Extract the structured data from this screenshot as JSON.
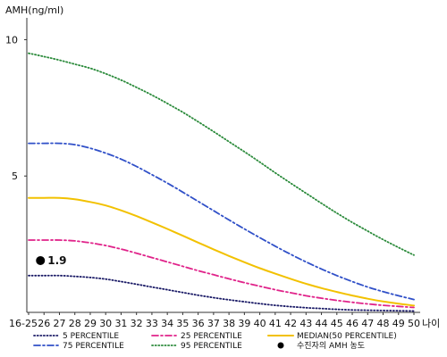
{
  "chart_data": {
    "type": "line",
    "ylabel": "AMH(ng/ml)",
    "xlabel": "나이",
    "categories": [
      "16-25",
      "26",
      "27",
      "28",
      "29",
      "30",
      "31",
      "32",
      "33",
      "34",
      "35",
      "36",
      "37",
      "38",
      "39",
      "40",
      "41",
      "42",
      "43",
      "44",
      "45",
      "46",
      "47",
      "48",
      "49",
      "50"
    ],
    "yticks": [
      5,
      10
    ],
    "ylim": [
      0,
      10.8
    ],
    "grid": false,
    "legend_position": "bottom",
    "series": [
      {
        "name": "5 PERCENTILE",
        "color": "#1a1a66",
        "style": "dotted",
        "values": [
          1.35,
          1.35,
          1.35,
          1.32,
          1.28,
          1.22,
          1.13,
          1.03,
          0.93,
          0.83,
          0.73,
          0.63,
          0.54,
          0.46,
          0.39,
          0.32,
          0.26,
          0.21,
          0.17,
          0.14,
          0.11,
          0.09,
          0.08,
          0.07,
          0.06,
          0.05
        ]
      },
      {
        "name": "25 PERCENTILE",
        "color": "#e0238a",
        "style": "dashdot",
        "values": [
          2.65,
          2.65,
          2.65,
          2.62,
          2.55,
          2.45,
          2.32,
          2.17,
          2.01,
          1.85,
          1.69,
          1.53,
          1.38,
          1.23,
          1.09,
          0.96,
          0.83,
          0.72,
          0.61,
          0.52,
          0.44,
          0.37,
          0.31,
          0.26,
          0.22,
          0.18
        ]
      },
      {
        "name": "MEDIAN(50 PERCENTILE)",
        "color": "#f2c100",
        "style": "solid",
        "values": [
          4.2,
          4.2,
          4.2,
          4.15,
          4.05,
          3.92,
          3.74,
          3.53,
          3.3,
          3.06,
          2.81,
          2.56,
          2.31,
          2.07,
          1.84,
          1.62,
          1.42,
          1.23,
          1.05,
          0.89,
          0.75,
          0.62,
          0.5,
          0.4,
          0.32,
          0.25
        ]
      },
      {
        "name": "75 PERCENTILE",
        "color": "#3050c8",
        "style": "dashdot",
        "values": [
          6.2,
          6.2,
          6.2,
          6.15,
          6.02,
          5.84,
          5.62,
          5.35,
          5.05,
          4.74,
          4.41,
          4.07,
          3.73,
          3.39,
          3.06,
          2.74,
          2.43,
          2.13,
          1.85,
          1.59,
          1.35,
          1.13,
          0.93,
          0.76,
          0.61,
          0.47
        ]
      },
      {
        "name": "95 PERCENTILE",
        "color": "#2a8a3a",
        "style": "dotted",
        "values": [
          9.5,
          9.38,
          9.25,
          9.1,
          8.95,
          8.75,
          8.52,
          8.25,
          7.97,
          7.66,
          7.34,
          6.99,
          6.63,
          6.26,
          5.89,
          5.51,
          5.12,
          4.74,
          4.37,
          4.0,
          3.64,
          3.3,
          2.98,
          2.67,
          2.38,
          2.1
        ]
      }
    ],
    "marker": {
      "x": "26",
      "y": 1.9,
      "label": "1.9",
      "legend": "수진자의 AMH 농도"
    }
  }
}
